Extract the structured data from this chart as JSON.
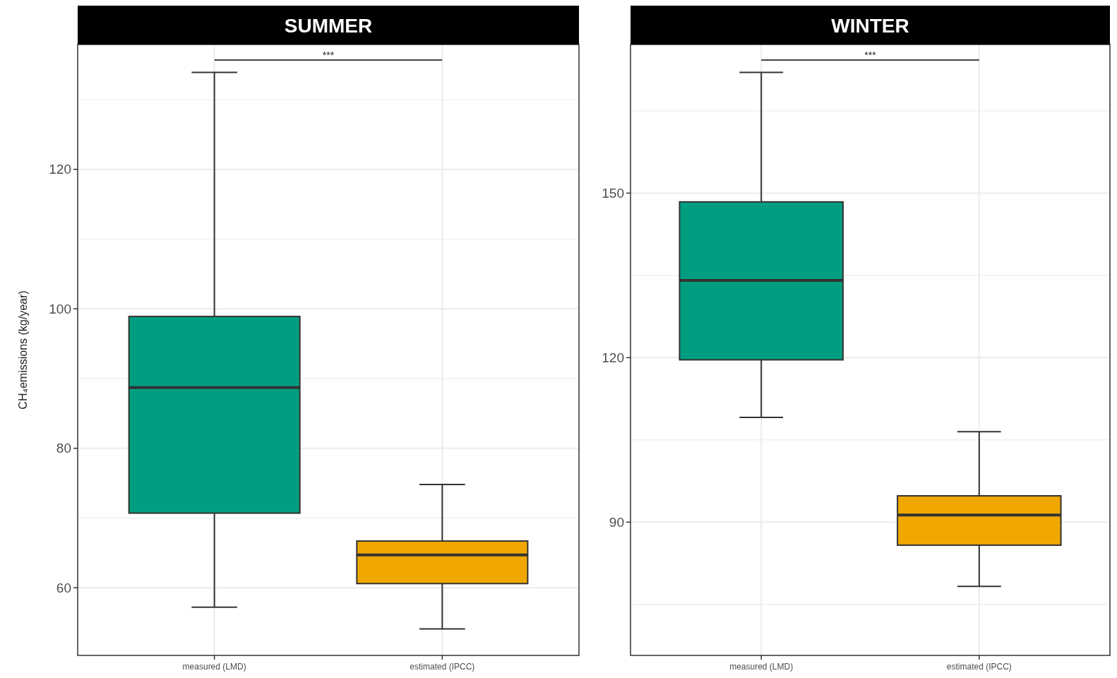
{
  "chart_data": [
    {
      "type": "box",
      "title": "SUMMER",
      "ylabel": "CH₄emissions (kg/year)",
      "categories": [
        "measured (LMD)",
        "estimated (IPCC)"
      ],
      "colors": [
        "#009e81",
        "#f0a800"
      ],
      "boxes": [
        {
          "low": 57.2,
          "q1": 70.7,
          "median": 88.7,
          "q3": 98.9,
          "high": 133.9
        },
        {
          "low": 54.1,
          "q1": 60.6,
          "median": 64.7,
          "q3": 66.7,
          "high": 74.8
        }
      ],
      "ylim": [
        50.3,
        137.9
      ],
      "yticks": [
        60,
        80,
        100,
        120
      ],
      "grid": true,
      "annotations": [
        "***"
      ]
    },
    {
      "type": "box",
      "title": "WINTER",
      "categories": [
        "measured (LMD)",
        "estimated (IPCC)"
      ],
      "colors": [
        "#009e81",
        "#f0a800"
      ],
      "boxes": [
        {
          "low": 109.1,
          "q1": 119.6,
          "median": 134.1,
          "q3": 148.4,
          "high": 172.0
        },
        {
          "low": 78.3,
          "q1": 85.8,
          "median": 91.3,
          "q3": 94.8,
          "high": 106.5
        }
      ],
      "ylim": [
        65.7,
        177.1
      ],
      "yticks": [
        90,
        120,
        150
      ],
      "grid": true,
      "annotations": [
        "***"
      ]
    }
  ]
}
